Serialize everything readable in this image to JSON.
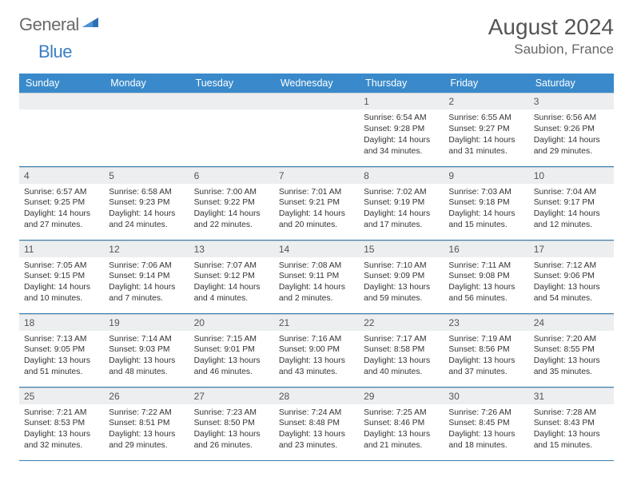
{
  "brand": {
    "part1": "General",
    "part2": "Blue"
  },
  "title": "August 2024",
  "location": "Saubion, France",
  "columns": [
    "Sunday",
    "Monday",
    "Tuesday",
    "Wednesday",
    "Thursday",
    "Friday",
    "Saturday"
  ],
  "colors": {
    "header_bg": "#3a8acb",
    "header_fg": "#ffffff",
    "daynum_bg": "#eceeef",
    "rule": "#3a7fb0",
    "brand_gray": "#6a6a6a",
    "brand_blue": "#3a7fc4"
  },
  "weeks": [
    [
      null,
      null,
      null,
      null,
      {
        "n": "1",
        "sunrise": "6:54 AM",
        "sunset": "9:28 PM",
        "daylight": "14 hours and 34 minutes."
      },
      {
        "n": "2",
        "sunrise": "6:55 AM",
        "sunset": "9:27 PM",
        "daylight": "14 hours and 31 minutes."
      },
      {
        "n": "3",
        "sunrise": "6:56 AM",
        "sunset": "9:26 PM",
        "daylight": "14 hours and 29 minutes."
      }
    ],
    [
      {
        "n": "4",
        "sunrise": "6:57 AM",
        "sunset": "9:25 PM",
        "daylight": "14 hours and 27 minutes."
      },
      {
        "n": "5",
        "sunrise": "6:58 AM",
        "sunset": "9:23 PM",
        "daylight": "14 hours and 24 minutes."
      },
      {
        "n": "6",
        "sunrise": "7:00 AM",
        "sunset": "9:22 PM",
        "daylight": "14 hours and 22 minutes."
      },
      {
        "n": "7",
        "sunrise": "7:01 AM",
        "sunset": "9:21 PM",
        "daylight": "14 hours and 20 minutes."
      },
      {
        "n": "8",
        "sunrise": "7:02 AM",
        "sunset": "9:19 PM",
        "daylight": "14 hours and 17 minutes."
      },
      {
        "n": "9",
        "sunrise": "7:03 AM",
        "sunset": "9:18 PM",
        "daylight": "14 hours and 15 minutes."
      },
      {
        "n": "10",
        "sunrise": "7:04 AM",
        "sunset": "9:17 PM",
        "daylight": "14 hours and 12 minutes."
      }
    ],
    [
      {
        "n": "11",
        "sunrise": "7:05 AM",
        "sunset": "9:15 PM",
        "daylight": "14 hours and 10 minutes."
      },
      {
        "n": "12",
        "sunrise": "7:06 AM",
        "sunset": "9:14 PM",
        "daylight": "14 hours and 7 minutes."
      },
      {
        "n": "13",
        "sunrise": "7:07 AM",
        "sunset": "9:12 PM",
        "daylight": "14 hours and 4 minutes."
      },
      {
        "n": "14",
        "sunrise": "7:08 AM",
        "sunset": "9:11 PM",
        "daylight": "14 hours and 2 minutes."
      },
      {
        "n": "15",
        "sunrise": "7:10 AM",
        "sunset": "9:09 PM",
        "daylight": "13 hours and 59 minutes."
      },
      {
        "n": "16",
        "sunrise": "7:11 AM",
        "sunset": "9:08 PM",
        "daylight": "13 hours and 56 minutes."
      },
      {
        "n": "17",
        "sunrise": "7:12 AM",
        "sunset": "9:06 PM",
        "daylight": "13 hours and 54 minutes."
      }
    ],
    [
      {
        "n": "18",
        "sunrise": "7:13 AM",
        "sunset": "9:05 PM",
        "daylight": "13 hours and 51 minutes."
      },
      {
        "n": "19",
        "sunrise": "7:14 AM",
        "sunset": "9:03 PM",
        "daylight": "13 hours and 48 minutes."
      },
      {
        "n": "20",
        "sunrise": "7:15 AM",
        "sunset": "9:01 PM",
        "daylight": "13 hours and 46 minutes."
      },
      {
        "n": "21",
        "sunrise": "7:16 AM",
        "sunset": "9:00 PM",
        "daylight": "13 hours and 43 minutes."
      },
      {
        "n": "22",
        "sunrise": "7:17 AM",
        "sunset": "8:58 PM",
        "daylight": "13 hours and 40 minutes."
      },
      {
        "n": "23",
        "sunrise": "7:19 AM",
        "sunset": "8:56 PM",
        "daylight": "13 hours and 37 minutes."
      },
      {
        "n": "24",
        "sunrise": "7:20 AM",
        "sunset": "8:55 PM",
        "daylight": "13 hours and 35 minutes."
      }
    ],
    [
      {
        "n": "25",
        "sunrise": "7:21 AM",
        "sunset": "8:53 PM",
        "daylight": "13 hours and 32 minutes."
      },
      {
        "n": "26",
        "sunrise": "7:22 AM",
        "sunset": "8:51 PM",
        "daylight": "13 hours and 29 minutes."
      },
      {
        "n": "27",
        "sunrise": "7:23 AM",
        "sunset": "8:50 PM",
        "daylight": "13 hours and 26 minutes."
      },
      {
        "n": "28",
        "sunrise": "7:24 AM",
        "sunset": "8:48 PM",
        "daylight": "13 hours and 23 minutes."
      },
      {
        "n": "29",
        "sunrise": "7:25 AM",
        "sunset": "8:46 PM",
        "daylight": "13 hours and 21 minutes."
      },
      {
        "n": "30",
        "sunrise": "7:26 AM",
        "sunset": "8:45 PM",
        "daylight": "13 hours and 18 minutes."
      },
      {
        "n": "31",
        "sunrise": "7:28 AM",
        "sunset": "8:43 PM",
        "daylight": "13 hours and 15 minutes."
      }
    ]
  ],
  "labels": {
    "sunrise": "Sunrise: ",
    "sunset": "Sunset: ",
    "daylight": "Daylight: "
  }
}
